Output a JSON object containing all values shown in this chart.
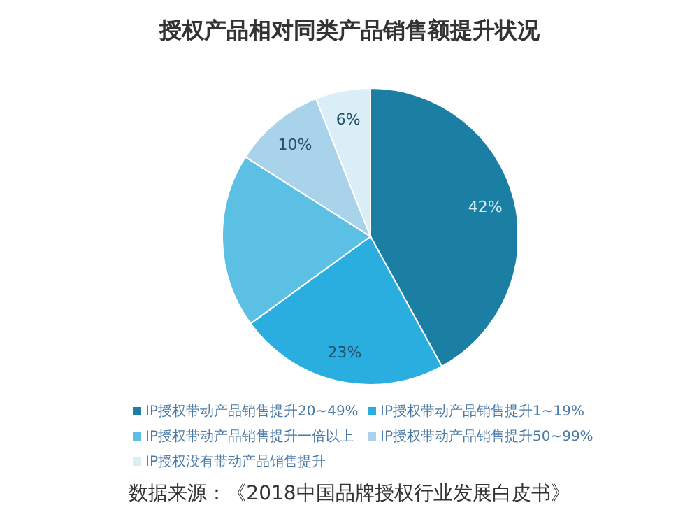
{
  "chart_data": {
    "type": "pie",
    "title": "授权产品相对同类产品销售额提升状况",
    "categories": [
      "IP授权带动产品销售提升20~49%",
      "IP授权带动产品销售提升1~19%",
      "IP授权带动产品销售提升一倍以上",
      "IP授权带动产品销售提升50~99%",
      "IP授权没有带动产品销售提升"
    ],
    "values": [
      42,
      23,
      19,
      10,
      6
    ],
    "value_labels": [
      "42%",
      "23%",
      null,
      "10%",
      "6%"
    ],
    "colors": [
      "#1b7fa3",
      "#2aaee0",
      "#5cc0e4",
      "#a9d3ea",
      "#d9eef7"
    ],
    "legend": "bottom",
    "annotations": [
      "数据来源：《2018中国品牌授权行业发展白皮书》"
    ]
  }
}
